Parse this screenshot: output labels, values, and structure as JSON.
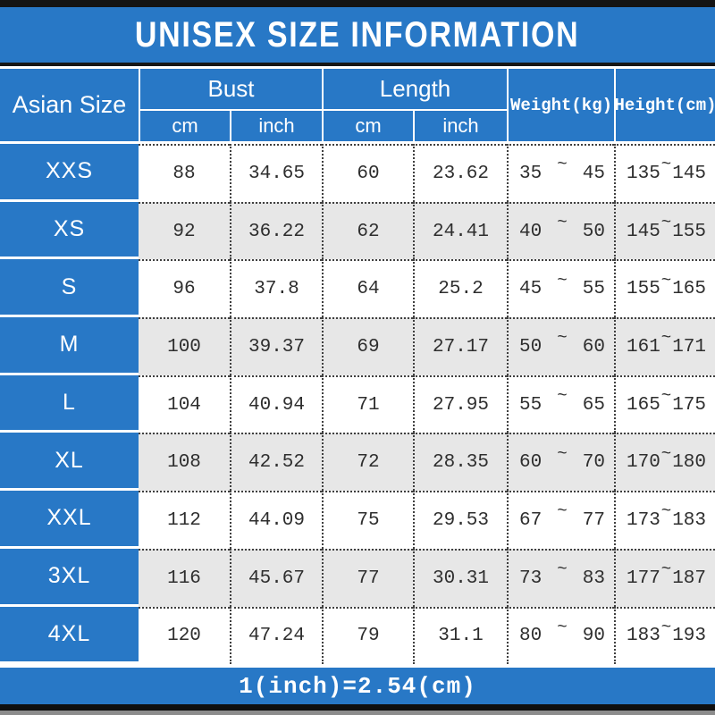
{
  "title": "UNISEX SIZE INFORMATION",
  "colors": {
    "blue": "#2878c6",
    "alt_row": "#e7e7e7",
    "bar_black": "#141414",
    "dotted_border": "#3f3f3f",
    "header_text": "#ffffff",
    "data_text": "#2e2e2e"
  },
  "table": {
    "size_col_header": "Asian Size",
    "groups": [
      {
        "label": "Bust",
        "sub": [
          "cm",
          "inch"
        ]
      },
      {
        "label": "Length",
        "sub": [
          "cm",
          "inch"
        ]
      }
    ],
    "weight_header": "Weight(kg)",
    "height_header": "Height(cm)",
    "range_separator": "~",
    "rows": [
      {
        "size": "XXS",
        "bust_cm": "88",
        "bust_inch": "34.65",
        "length_cm": "60",
        "length_inch": "23.62",
        "weight_min": "35",
        "weight_max": "45",
        "height_min": "135",
        "height_max": "145"
      },
      {
        "size": "XS",
        "bust_cm": "92",
        "bust_inch": "36.22",
        "length_cm": "62",
        "length_inch": "24.41",
        "weight_min": "40",
        "weight_max": "50",
        "height_min": "145",
        "height_max": "155"
      },
      {
        "size": "S",
        "bust_cm": "96",
        "bust_inch": "37.8",
        "length_cm": "64",
        "length_inch": "25.2",
        "weight_min": "45",
        "weight_max": "55",
        "height_min": "155",
        "height_max": "165"
      },
      {
        "size": "M",
        "bust_cm": "100",
        "bust_inch": "39.37",
        "length_cm": "69",
        "length_inch": "27.17",
        "weight_min": "50",
        "weight_max": "60",
        "height_min": "161",
        "height_max": "171"
      },
      {
        "size": "L",
        "bust_cm": "104",
        "bust_inch": "40.94",
        "length_cm": "71",
        "length_inch": "27.95",
        "weight_min": "55",
        "weight_max": "65",
        "height_min": "165",
        "height_max": "175"
      },
      {
        "size": "XL",
        "bust_cm": "108",
        "bust_inch": "42.52",
        "length_cm": "72",
        "length_inch": "28.35",
        "weight_min": "60",
        "weight_max": "70",
        "height_min": "170",
        "height_max": "180"
      },
      {
        "size": "XXL",
        "bust_cm": "112",
        "bust_inch": "44.09",
        "length_cm": "75",
        "length_inch": "29.53",
        "weight_min": "67",
        "weight_max": "77",
        "height_min": "173",
        "height_max": "183"
      },
      {
        "size": "3XL",
        "bust_cm": "116",
        "bust_inch": "45.67",
        "length_cm": "77",
        "length_inch": "30.31",
        "weight_min": "73",
        "weight_max": "83",
        "height_min": "177",
        "height_max": "187"
      },
      {
        "size": "4XL",
        "bust_cm": "120",
        "bust_inch": "47.24",
        "length_cm": "79",
        "length_inch": "31.1",
        "weight_min": "80",
        "weight_max": "90",
        "height_min": "183",
        "height_max": "193"
      }
    ]
  },
  "footer": {
    "note": "1(inch)=2.54(cm)"
  },
  "chart_data": {
    "type": "table",
    "title": "UNISEX SIZE INFORMATION",
    "columns": [
      "Asian Size",
      "Bust (cm)",
      "Bust (inch)",
      "Length (cm)",
      "Length (inch)",
      "Weight(kg)",
      "Height(cm)"
    ],
    "rows": [
      [
        "XXS",
        88,
        34.65,
        60,
        23.62,
        "35~45",
        "135~145"
      ],
      [
        "XS",
        92,
        36.22,
        62,
        24.41,
        "40~50",
        "145~155"
      ],
      [
        "S",
        96,
        37.8,
        64,
        25.2,
        "45~55",
        "155~165"
      ],
      [
        "M",
        100,
        39.37,
        69,
        27.17,
        "50~60",
        "161~171"
      ],
      [
        "L",
        104,
        40.94,
        71,
        27.95,
        "55~65",
        "165~175"
      ],
      [
        "XL",
        108,
        42.52,
        72,
        28.35,
        "60~70",
        "170~180"
      ],
      [
        "XXL",
        112,
        44.09,
        75,
        29.53,
        "67~77",
        "173~183"
      ],
      [
        "3XL",
        116,
        45.67,
        77,
        30.31,
        "73~83",
        "177~187"
      ],
      [
        "4XL",
        120,
        47.24,
        79,
        31.1,
        "80~90",
        "183~193"
      ]
    ],
    "footnote": "1(inch)=2.54(cm)"
  }
}
